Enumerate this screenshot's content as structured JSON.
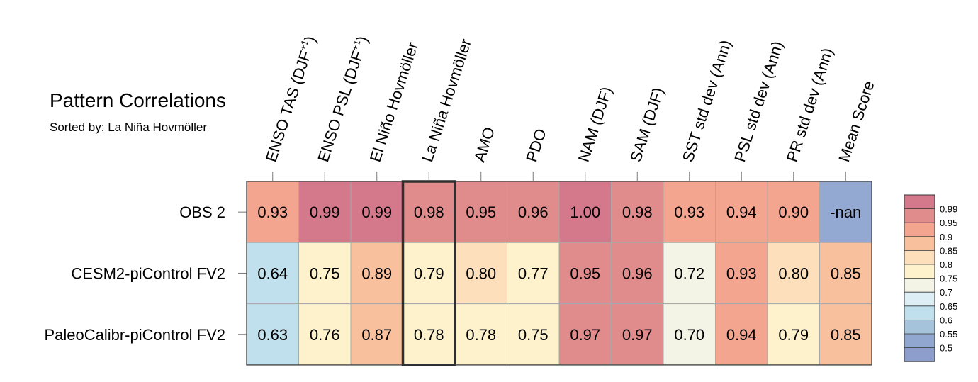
{
  "title": "Pattern Correlations",
  "subtitle": "Sorted by: La Niña Hovmöller",
  "chart_data": {
    "type": "heatmap",
    "columns": [
      {
        "main": "ENSO TAS (DJF",
        "sup": "+1",
        "tail": ")"
      },
      {
        "main": "ENSO PSL (DJF",
        "sup": "+1",
        "tail": ")"
      },
      {
        "main": "El Niño Hovmöller",
        "sup": "",
        "tail": ""
      },
      {
        "main": "La Niña Hovmöller",
        "sup": "",
        "tail": ""
      },
      {
        "main": "AMO",
        "sup": "",
        "tail": ""
      },
      {
        "main": "PDO",
        "sup": "",
        "tail": ""
      },
      {
        "main": "NAM (DJF)",
        "sup": "",
        "tail": ""
      },
      {
        "main": "SAM (DJF)",
        "sup": "",
        "tail": ""
      },
      {
        "main": "SST std dev (Ann)",
        "sup": "",
        "tail": ""
      },
      {
        "main": "PSL std dev (Ann)",
        "sup": "",
        "tail": ""
      },
      {
        "main": "PR std dev (Ann)",
        "sup": "",
        "tail": ""
      },
      {
        "main": "Mean Score",
        "sup": "",
        "tail": ""
      }
    ],
    "rows": [
      {
        "name": "OBS 2",
        "labels": [
          "0.93",
          "0.99",
          "0.99",
          "0.98",
          "0.95",
          "0.96",
          "1.00",
          "0.98",
          "0.93",
          "0.94",
          "0.90",
          "-nan"
        ],
        "values": [
          0.93,
          0.99,
          0.99,
          0.98,
          0.95,
          0.96,
          1.0,
          0.98,
          0.93,
          0.94,
          0.9,
          null
        ]
      },
      {
        "name": "CESM2-piControl FV2",
        "labels": [
          "0.64",
          "0.75",
          "0.89",
          "0.79",
          "0.80",
          "0.77",
          "0.95",
          "0.96",
          "0.72",
          "0.93",
          "0.80",
          "0.85"
        ],
        "values": [
          0.64,
          0.75,
          0.89,
          0.79,
          0.8,
          0.77,
          0.95,
          0.96,
          0.72,
          0.93,
          0.8,
          0.85
        ]
      },
      {
        "name": "PaleoCalibr-piControl FV2",
        "labels": [
          "0.63",
          "0.76",
          "0.87",
          "0.78",
          "0.78",
          "0.75",
          "0.97",
          "0.97",
          "0.70",
          "0.94",
          "0.79",
          "0.85"
        ],
        "values": [
          0.63,
          0.76,
          0.87,
          0.78,
          0.78,
          0.75,
          0.97,
          0.97,
          0.7,
          0.94,
          0.79,
          0.85
        ]
      }
    ],
    "highlight_column": 3,
    "colorbar": {
      "levels": [
        "0.99",
        "0.95",
        "0.9",
        "0.85",
        "0.8",
        "0.75",
        "0.7",
        "0.65",
        "0.6",
        "0.55",
        "0.5"
      ],
      "colors": [
        "#d4788b",
        "#e18c8c",
        "#f3a590",
        "#f9c09e",
        "#fde0bb",
        "#fdf2cb",
        "#f3f3e6",
        "#ddeef5",
        "#bfe0ec",
        "#a5c4dc",
        "#92a7d0",
        "#8d9dcc"
      ],
      "nan_color": "#93a9d2"
    }
  }
}
